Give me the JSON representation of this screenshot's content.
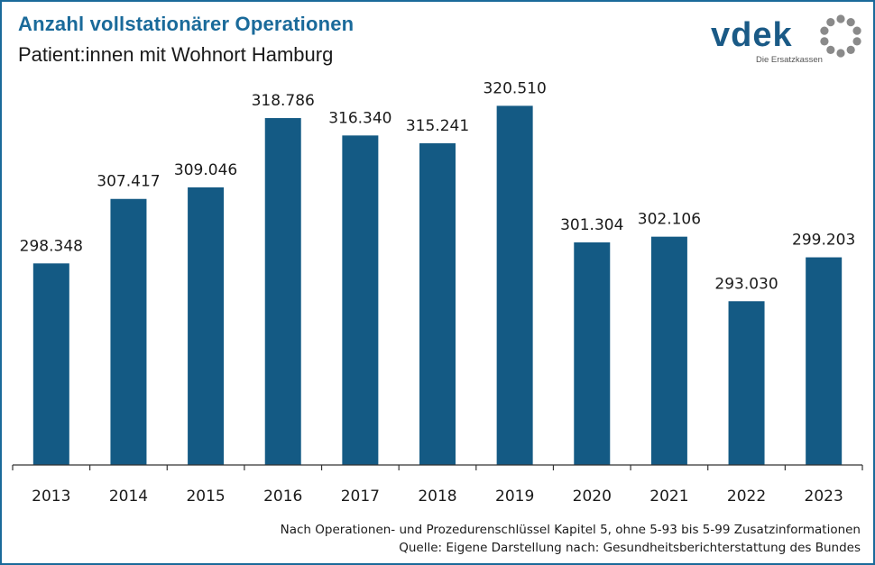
{
  "header": {
    "title": "Anzahl vollstationärer Operationen",
    "subtitle": "Patient:innen mit Wohnort Hamburg"
  },
  "logo": {
    "wordmark": "vdek",
    "tagline": "Die Ersatzkassen",
    "color": "#1a5a86",
    "ring_color": "#8a8a8a"
  },
  "colors": {
    "bar": "#145a84",
    "frame": "#1a6a9a",
    "title": "#1a6a9a"
  },
  "chart_data": {
    "type": "bar",
    "categories": [
      "2013",
      "2014",
      "2015",
      "2016",
      "2017",
      "2018",
      "2019",
      "2020",
      "2021",
      "2022",
      "2023"
    ],
    "values": [
      298348,
      307417,
      309046,
      318786,
      316340,
      315241,
      320510,
      301304,
      302106,
      293030,
      299203
    ],
    "data_labels": [
      "298.348",
      "307.417",
      "309.046",
      "318.786",
      "316.340",
      "315.241",
      "320.510",
      "301.304",
      "302.106",
      "293.030",
      "299.203"
    ],
    "title": "Anzahl vollstationärer Operationen",
    "subtitle": "Patient:innen mit Wohnort Hamburg",
    "ylim": [
      270000,
      325000
    ],
    "grid": false,
    "legend": "none"
  },
  "footnotes": [
    "Nach Operationen- und Prozedurenschlüssel Kapitel 5, ohne 5-93 bis 5-99 Zusatzinformationen",
    "Quelle: Eigene Darstellung nach: Gesundheitsberichterstattung des Bundes"
  ]
}
